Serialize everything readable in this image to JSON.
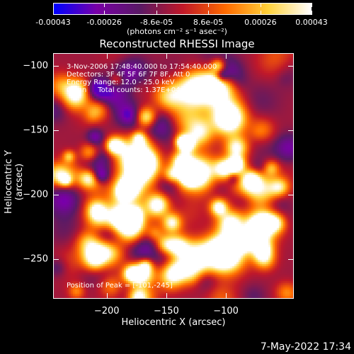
{
  "colorbar": {
    "labels": [
      "-0.00043",
      "-0.00026",
      "-8.6e-05",
      "8.6e-05",
      "0.00026",
      "0.00043"
    ],
    "values": [
      -0.00043,
      -0.00026,
      -8.6e-05,
      8.6e-05,
      0.00026,
      0.00043
    ],
    "units": "(photons cm⁻² s⁻¹ asec⁻²)",
    "colors": [
      "#0000ff",
      "#7a00a8",
      "#5a1a66",
      "#c0182a",
      "#ff6a00",
      "#ffd23a",
      "#ffffff"
    ]
  },
  "title": "Reconstructed RHESSI Image",
  "annotations": {
    "time": "3-Nov-2006 17:48:40.000 to 17:54:40.000",
    "detectors": "Detectors: 3F 4F 5F 6F 7F 8F, Att 0",
    "energy": "Energy Range: 12.0 - 25.0 keV",
    "clean": "Clean     Total counts: 1.37E+04",
    "peak": "Position of Peak = [-101,-245]"
  },
  "chart_data": {
    "type": "heatmap",
    "title": "Reconstructed RHESSI Image",
    "xlabel": "Heliocentric X (arcsec)",
    "ylabel": "Heliocentric Y (arcsec)",
    "xlim": [
      -245,
      -43
    ],
    "ylim": [
      -281,
      -90
    ],
    "xticks": [
      -200,
      -150,
      -100
    ],
    "yticks": [
      -100,
      -150,
      -200,
      -250
    ],
    "xtick_labels": [
      "−200",
      "−150",
      "−100"
    ],
    "ytick_labels": [
      "−100",
      "−150",
      "−200",
      "−250"
    ],
    "peak": [
      -101,
      -245
    ],
    "zlim": [
      -0.00043,
      0.00043
    ]
  },
  "timestamp": "7-May-2022 17:34"
}
